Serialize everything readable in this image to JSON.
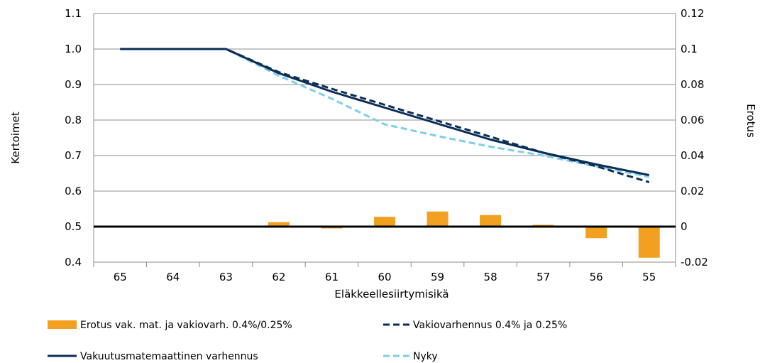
{
  "chart_data": {
    "type": "bar+line",
    "xlabel": "Eläkkeellesiirtymisikä",
    "ylabel_left": "Kertoimet",
    "ylabel_right": "Erotus",
    "categories": [
      "65",
      "64",
      "63",
      "62",
      "61",
      "60",
      "59",
      "58",
      "57",
      "56",
      "55"
    ],
    "y_left": {
      "min": 0.4,
      "max": 1.1,
      "step": 0.1,
      "ticks": [
        "0.4",
        "0.5",
        "0.6",
        "0.7",
        "0.8",
        "0.9",
        "1.0",
        "1.1"
      ]
    },
    "y_right": {
      "min": -0.02,
      "max": 0.12,
      "step": 0.02,
      "ticks": [
        "-0.02",
        "0",
        "0.02",
        "0.04",
        "0.06",
        "0.08",
        "0.1",
        "0.12"
      ]
    },
    "grid": true,
    "legend_position": "bottom",
    "series": [
      {
        "name": "Erotus vak. mat. ja vakiovarh. 0.4%/0.25%",
        "type": "bar",
        "axis": "right",
        "color": "#F2A01F",
        "values": [
          0,
          0,
          0,
          0.0025,
          -0.001,
          0.0055,
          0.0085,
          0.0065,
          0.001,
          -0.0065,
          -0.0175
        ]
      },
      {
        "name": "Vakiovarhennus 0.4% ja 0.25%",
        "type": "line",
        "style": "dashed",
        "axis": "left",
        "color": "#0B2E57",
        "values": [
          1.0,
          1.0,
          1.0,
          0.935,
          0.888,
          0.843,
          0.798,
          0.753,
          0.708,
          0.67,
          0.625
        ]
      },
      {
        "name": "Vakuutusmatemaattinen varhennus",
        "type": "line",
        "style": "solid",
        "axis": "left",
        "color": "#0B2E57",
        "values": [
          1.0,
          1.0,
          1.0,
          0.932,
          0.88,
          0.835,
          0.79,
          0.745,
          0.708,
          0.675,
          0.645
        ]
      },
      {
        "name": "Nyky",
        "type": "line",
        "style": "dashed",
        "axis": "left",
        "color": "#7DCFEA",
        "values": [
          1.0,
          1.0,
          1.0,
          0.925,
          0.86,
          0.788,
          0.755,
          0.725,
          0.7,
          0.67,
          0.64
        ]
      }
    ]
  }
}
